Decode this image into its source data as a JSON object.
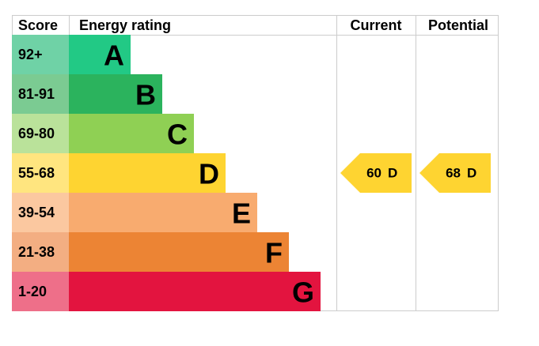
{
  "header": {
    "score": "Score",
    "energy_rating": "Energy rating",
    "current": "Current",
    "potential": "Potential"
  },
  "bands": [
    {
      "range": "92+",
      "letter": "A",
      "color": "#22c985",
      "light": "#6fd2a6"
    },
    {
      "range": "81-91",
      "letter": "B",
      "color": "#2bb35d",
      "light": "#7bcb92"
    },
    {
      "range": "69-80",
      "letter": "C",
      "color": "#8fd054",
      "light": "#bae29a"
    },
    {
      "range": "55-68",
      "letter": "D",
      "color": "#fed431",
      "light": "#ffe57f"
    },
    {
      "range": "39-54",
      "letter": "E",
      "color": "#f8ab6f",
      "light": "#fbc8a0"
    },
    {
      "range": "21-38",
      "letter": "F",
      "color": "#ec8434",
      "light": "#f3ae82"
    },
    {
      "range": "1-20",
      "letter": "G",
      "color": "#e3143f",
      "light": "#ee6f89"
    }
  ],
  "current": {
    "score": 60,
    "band": "D"
  },
  "potential": {
    "score": 68,
    "band": "D"
  }
}
